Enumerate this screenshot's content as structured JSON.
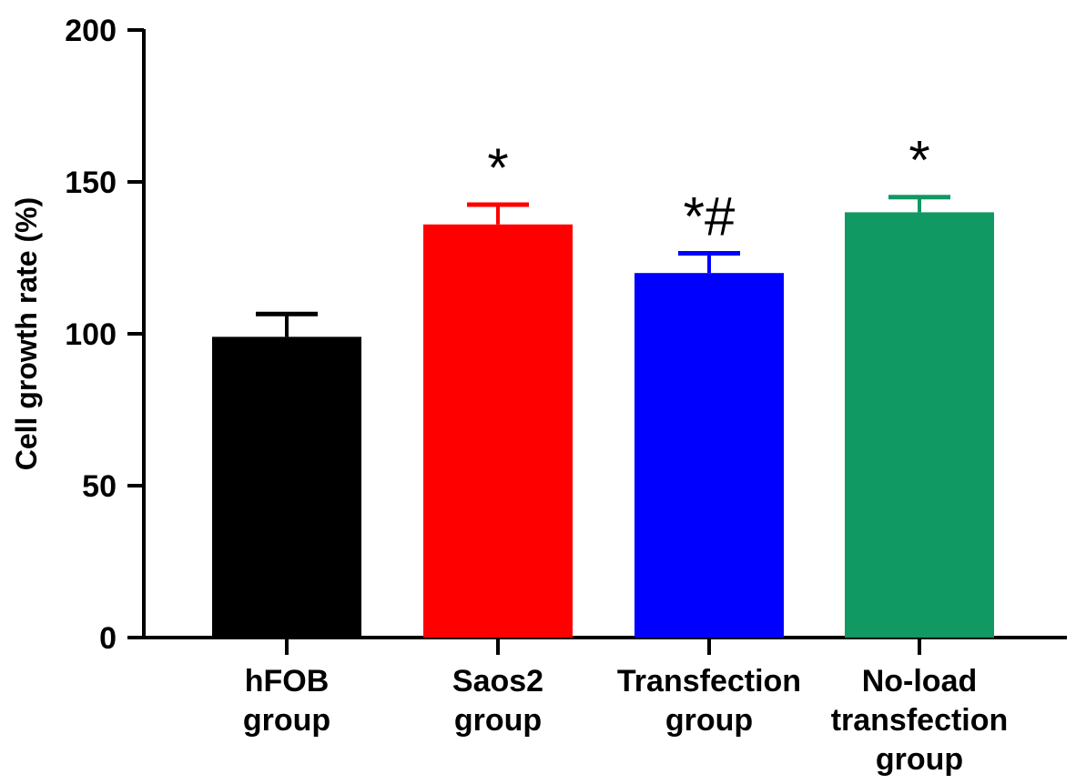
{
  "chart_data": {
    "type": "bar",
    "ylabel": "Cell growth rate  (%)",
    "ylim": [
      0,
      200
    ],
    "yticks": [
      "0",
      "50",
      "100",
      "150",
      "200"
    ],
    "grid": false,
    "categories": [
      {
        "lines": [
          "hFOB",
          "group"
        ]
      },
      {
        "lines": [
          "Saos2",
          "group"
        ]
      },
      {
        "lines": [
          "Transfection",
          "group"
        ]
      },
      {
        "lines": [
          "No-load",
          "transfection",
          "group"
        ]
      }
    ],
    "values": [
      99,
      136,
      120,
      140
    ],
    "errors": [
      7.5,
      6.5,
      6.5,
      5
    ],
    "colors": [
      "#000000",
      "#ff0000",
      "#0000ff",
      "#109963"
    ],
    "annotations": [
      "",
      "*",
      "*#",
      "*"
    ]
  }
}
